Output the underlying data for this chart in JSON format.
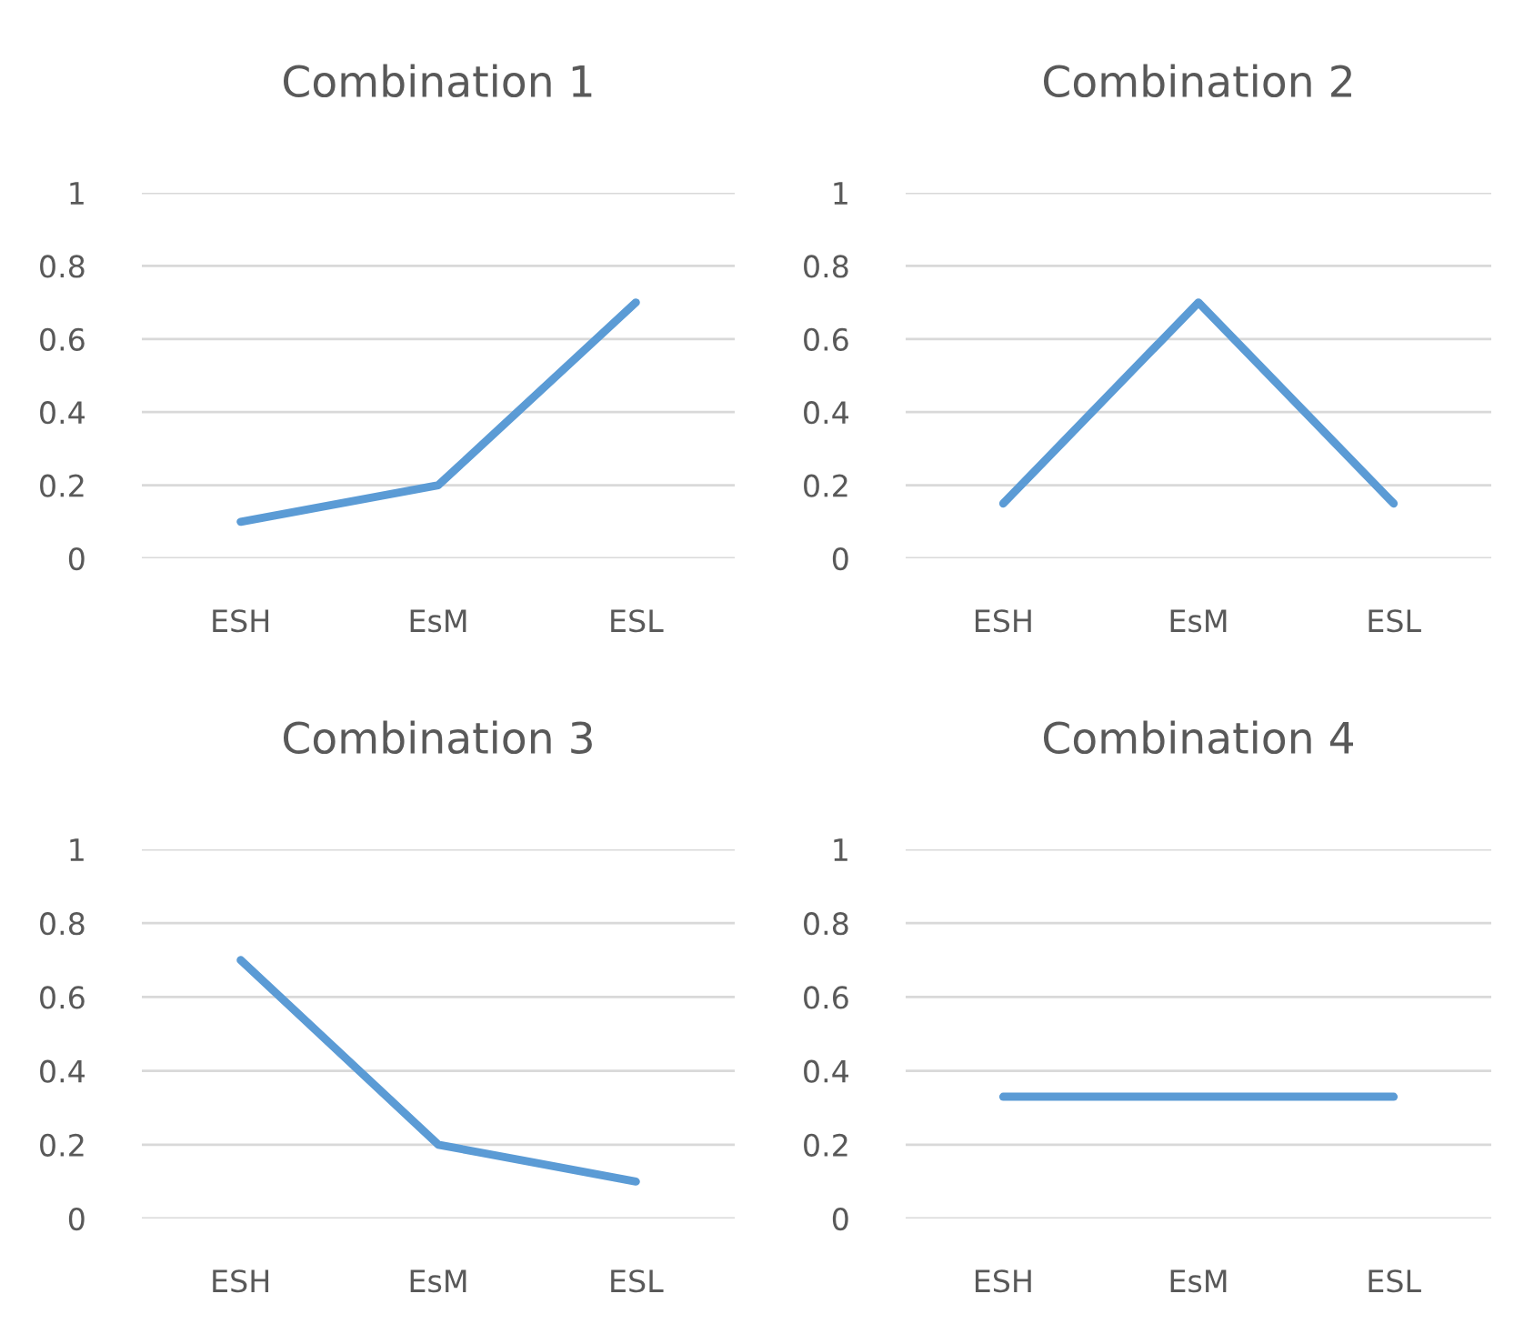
{
  "chart_data": [
    {
      "type": "line",
      "title": "Combination 1",
      "categories": [
        "ESH",
        "EsM",
        "ESL"
      ],
      "series": [
        {
          "color": "#5b9bd5",
          "values": [
            0.1,
            0.2,
            0.7
          ]
        }
      ],
      "ylim": [
        0,
        1
      ],
      "yticks": [
        0,
        0.2,
        0.4,
        0.6,
        0.8,
        1
      ],
      "grid": "y",
      "legend": false,
      "marker": "none",
      "line_style": "solid"
    },
    {
      "type": "line",
      "title": "Combination 2",
      "categories": [
        "ESH",
        "EsM",
        "ESL"
      ],
      "series": [
        {
          "color": "#5b9bd5",
          "values": [
            0.15,
            0.7,
            0.15
          ]
        }
      ],
      "ylim": [
        0,
        1
      ],
      "yticks": [
        0,
        0.2,
        0.4,
        0.6,
        0.8,
        1
      ],
      "grid": "y",
      "legend": false,
      "marker": "none",
      "line_style": "solid"
    },
    {
      "type": "line",
      "title": "Combination 3",
      "categories": [
        "ESH",
        "EsM",
        "ESL"
      ],
      "series": [
        {
          "color": "#5b9bd5",
          "values": [
            0.7,
            0.2,
            0.1
          ]
        }
      ],
      "ylim": [
        0,
        1
      ],
      "yticks": [
        0,
        0.2,
        0.4,
        0.6,
        0.8,
        1
      ],
      "grid": "y",
      "legend": false,
      "marker": "none",
      "line_style": "solid"
    },
    {
      "type": "line",
      "title": "Combination 4",
      "categories": [
        "ESH",
        "EsM",
        "ESL"
      ],
      "series": [
        {
          "color": "#5b9bd5",
          "values": [
            0.33,
            0.33,
            0.33
          ]
        }
      ],
      "ylim": [
        0,
        1
      ],
      "yticks": [
        0,
        0.2,
        0.4,
        0.6,
        0.8,
        1
      ],
      "grid": "y",
      "legend": false,
      "marker": "none",
      "line_style": "solid"
    }
  ]
}
